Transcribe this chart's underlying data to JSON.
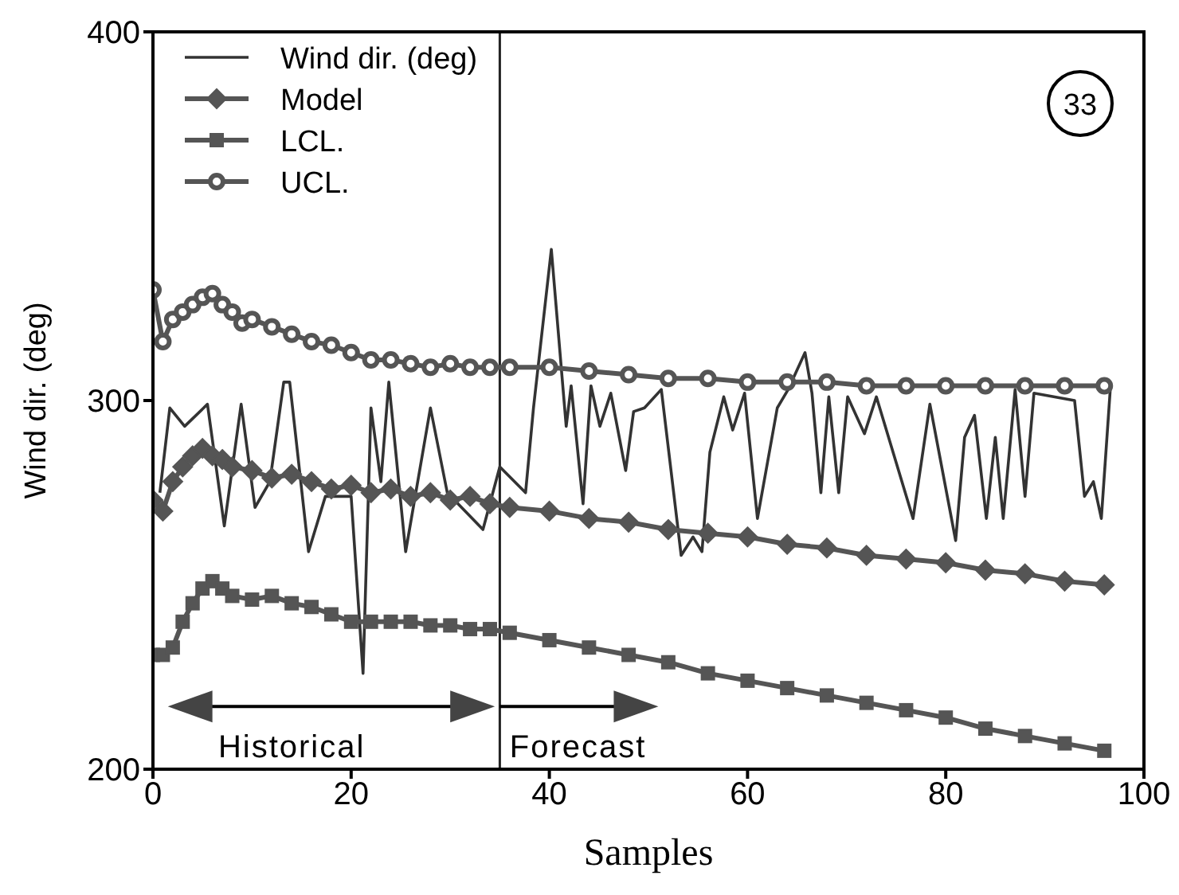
{
  "chart_data": {
    "type": "line",
    "xlabel": "Samples",
    "ylabel": "Wind dir. (deg)",
    "xlim": [
      0,
      100
    ],
    "xticks": [
      0,
      20,
      40,
      60,
      80,
      100
    ],
    "ylim": [
      200,
      400
    ],
    "yticks": [
      200,
      300,
      400
    ],
    "legend": "top left",
    "series": [
      {
        "name": "Wind dir. (deg)",
        "color": "#333333",
        "marker": "none",
        "x": [
          0.7,
          1.7,
          3.2,
          5.5,
          7.2,
          8.9,
          10.3,
          11.8,
          13.2,
          13.8,
          15.7,
          17.4,
          20,
          21.2,
          22,
          23,
          23.8,
          25.5,
          28,
          29.7,
          33.3,
          35,
          37.6,
          38.4,
          40.2,
          41.7,
          42.2,
          43.4,
          44.2,
          45.1,
          46.2,
          47.7,
          48.5,
          49.6,
          51.3,
          53.3,
          54.5,
          55.4,
          56.2,
          57.6,
          58.5,
          59.7,
          61,
          63,
          64.1,
          65.8,
          66.5,
          67.4,
          68.2,
          69.2,
          70.1,
          71.8,
          73,
          76.7,
          78.4,
          81,
          81.9,
          82.9,
          84.1,
          85,
          85.8,
          87,
          88,
          88.9,
          93,
          94,
          94.9,
          95.7,
          96.6
        ],
        "values": [
          275,
          298,
          293,
          299,
          266,
          299,
          271,
          278,
          305,
          305,
          259,
          274,
          274,
          226,
          298,
          278,
          305,
          259,
          298,
          275,
          265,
          282,
          275,
          298,
          341,
          293,
          304,
          272,
          304,
          293,
          302,
          281,
          297,
          298,
          303,
          258,
          263,
          259,
          286,
          301,
          292,
          302,
          268,
          298,
          303,
          313,
          302,
          275,
          301,
          275,
          301,
          291,
          301,
          268,
          299,
          262,
          290,
          296,
          268,
          290,
          268,
          303,
          274,
          302,
          300,
          274,
          278,
          268,
          303
        ]
      },
      {
        "name": "Model",
        "color": "#555555",
        "marker": "diamond",
        "x": [
          0,
          1,
          2,
          3,
          4,
          5,
          6,
          7,
          8,
          10,
          12,
          14,
          16,
          18,
          20,
          22,
          24,
          26,
          28,
          30,
          32,
          34,
          36,
          40,
          44,
          48,
          52,
          56,
          60,
          64,
          68,
          72,
          76,
          80,
          84,
          88,
          92,
          96
        ],
        "values": [
          273,
          270,
          278,
          282,
          285,
          287,
          285,
          284,
          282,
          281,
          279,
          280,
          278,
          276,
          277,
          275,
          276,
          274,
          275,
          273,
          274,
          272,
          271,
          270,
          268,
          267,
          265,
          264,
          263,
          261,
          260,
          258,
          257,
          256,
          254,
          253,
          251,
          250
        ]
      },
      {
        "name": "LCL.",
        "color": "#555555",
        "marker": "square",
        "x": [
          0,
          1,
          2,
          3,
          4,
          5,
          6,
          7,
          8,
          10,
          12,
          14,
          16,
          18,
          20,
          22,
          24,
          26,
          28,
          30,
          32,
          34,
          36,
          40,
          44,
          48,
          52,
          56,
          60,
          64,
          68,
          72,
          76,
          80,
          84,
          88,
          92,
          96
        ],
        "values": [
          231,
          231,
          233,
          240,
          245,
          249,
          251,
          249,
          247,
          246,
          247,
          245,
          244,
          242,
          240,
          240,
          240,
          240,
          239,
          239,
          238,
          238,
          237,
          235,
          233,
          231,
          229,
          226,
          224,
          222,
          220,
          218,
          216,
          214,
          211,
          209,
          207,
          205
        ]
      },
      {
        "name": "UCL.",
        "color": "#555555",
        "marker": "circle",
        "x": [
          0,
          1,
          2,
          3,
          4,
          5,
          6,
          7,
          8,
          9,
          10,
          12,
          14,
          16,
          18,
          20,
          22,
          24,
          26,
          28,
          30,
          32,
          34,
          36,
          40,
          44,
          48,
          52,
          56,
          60,
          64,
          68,
          72,
          76,
          80,
          84,
          88,
          92,
          96
        ],
        "values": [
          330,
          316,
          322,
          324,
          326,
          328,
          329,
          326,
          324,
          321,
          322,
          320,
          318,
          316,
          315,
          313,
          311,
          311,
          310,
          309,
          310,
          309,
          309,
          309,
          309,
          308,
          307,
          306,
          306,
          305,
          305,
          305,
          304,
          304,
          304,
          304,
          304,
          304,
          304
        ]
      }
    ],
    "ref_lines": [
      {
        "axis": "x",
        "value": 35,
        "color": "#222222"
      }
    ],
    "annotations": [
      "33",
      "Historical",
      "Forecast"
    ]
  }
}
